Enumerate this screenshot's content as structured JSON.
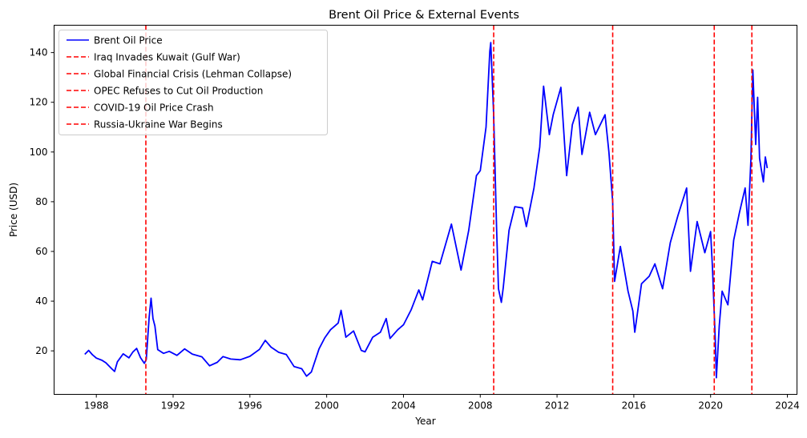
{
  "chart_data": {
    "type": "line",
    "title": "Brent Oil Price & External Events",
    "xlabel": "Year",
    "ylabel": "Price (USD)",
    "xlim": [
      1985.8,
      2024.5
    ],
    "ylim": [
      2.5,
      151
    ],
    "x_ticks": [
      1988,
      1992,
      1996,
      2000,
      2004,
      2008,
      2012,
      2016,
      2020,
      2024
    ],
    "y_ticks": [
      20,
      40,
      60,
      80,
      100,
      120,
      140
    ],
    "grid": false,
    "legend_position": "top-left",
    "series": [
      {
        "name": "Brent Oil Price",
        "color": "#0000ff",
        "points": [
          [
            1987.4,
            18.6
          ],
          [
            1987.6,
            20.2
          ],
          [
            1987.8,
            18.4
          ],
          [
            1988.0,
            17.1
          ],
          [
            1988.3,
            16.2
          ],
          [
            1988.5,
            15.2
          ],
          [
            1988.8,
            12.8
          ],
          [
            1988.95,
            11.7
          ],
          [
            1989.1,
            15.6
          ],
          [
            1989.4,
            18.8
          ],
          [
            1989.7,
            17.2
          ],
          [
            1989.9,
            19.5
          ],
          [
            1990.1,
            21.0
          ],
          [
            1990.3,
            17.3
          ],
          [
            1990.5,
            15.0
          ],
          [
            1990.6,
            16.5
          ],
          [
            1990.75,
            33.5
          ],
          [
            1990.85,
            41.2
          ],
          [
            1990.95,
            33.0
          ],
          [
            1991.05,
            30.0
          ],
          [
            1991.2,
            20.5
          ],
          [
            1991.5,
            19.0
          ],
          [
            1991.8,
            19.8
          ],
          [
            1992.2,
            18.2
          ],
          [
            1992.6,
            20.8
          ],
          [
            1993.0,
            18.7
          ],
          [
            1993.5,
            17.6
          ],
          [
            1993.9,
            14.0
          ],
          [
            1994.3,
            15.4
          ],
          [
            1994.6,
            17.7
          ],
          [
            1995.0,
            16.7
          ],
          [
            1995.5,
            16.4
          ],
          [
            1996.0,
            17.8
          ],
          [
            1996.5,
            20.6
          ],
          [
            1996.8,
            24.2
          ],
          [
            1997.1,
            21.5
          ],
          [
            1997.5,
            19.4
          ],
          [
            1997.9,
            18.5
          ],
          [
            1998.3,
            13.7
          ],
          [
            1998.7,
            12.8
          ],
          [
            1998.95,
            9.8
          ],
          [
            1999.2,
            11.5
          ],
          [
            1999.6,
            20.8
          ],
          [
            1999.9,
            25.2
          ],
          [
            2000.2,
            28.5
          ],
          [
            2000.6,
            31.2
          ],
          [
            2000.75,
            36.3
          ],
          [
            2001.0,
            25.5
          ],
          [
            2001.4,
            28.0
          ],
          [
            2001.8,
            20.2
          ],
          [
            2002.0,
            19.6
          ],
          [
            2002.4,
            25.5
          ],
          [
            2002.8,
            27.5
          ],
          [
            2003.1,
            33.0
          ],
          [
            2003.3,
            25.0
          ],
          [
            2003.7,
            28.5
          ],
          [
            2004.0,
            30.5
          ],
          [
            2004.4,
            36.5
          ],
          [
            2004.8,
            44.5
          ],
          [
            2005.0,
            40.5
          ],
          [
            2005.5,
            56.0
          ],
          [
            2005.9,
            55.0
          ],
          [
            2006.5,
            71.0
          ],
          [
            2007.0,
            52.5
          ],
          [
            2007.4,
            68.5
          ],
          [
            2007.8,
            90.5
          ],
          [
            2008.0,
            92.5
          ],
          [
            2008.3,
            110.0
          ],
          [
            2008.5,
            140.5
          ],
          [
            2008.55,
            144.0
          ],
          [
            2008.7,
            115.0
          ],
          [
            2008.85,
            70.0
          ],
          [
            2008.95,
            45.0
          ],
          [
            2009.1,
            39.5
          ],
          [
            2009.2,
            45.5
          ],
          [
            2009.5,
            68.5
          ],
          [
            2009.8,
            78.0
          ],
          [
            2010.2,
            77.5
          ],
          [
            2010.4,
            70.0
          ],
          [
            2010.8,
            85.5
          ],
          [
            2011.1,
            102.0
          ],
          [
            2011.3,
            126.5
          ],
          [
            2011.6,
            107.0
          ],
          [
            2011.8,
            115.0
          ],
          [
            2012.2,
            126.0
          ],
          [
            2012.5,
            90.5
          ],
          [
            2012.8,
            111.0
          ],
          [
            2013.1,
            118.0
          ],
          [
            2013.3,
            99.0
          ],
          [
            2013.7,
            116.0
          ],
          [
            2014.0,
            107.0
          ],
          [
            2014.5,
            115.0
          ],
          [
            2014.7,
            100.0
          ],
          [
            2014.9,
            80.0
          ],
          [
            2015.0,
            48.0
          ],
          [
            2015.3,
            62.0
          ],
          [
            2015.7,
            44.0
          ],
          [
            2015.95,
            36.0
          ],
          [
            2016.05,
            27.5
          ],
          [
            2016.4,
            47.0
          ],
          [
            2016.8,
            50.0
          ],
          [
            2017.1,
            55.0
          ],
          [
            2017.5,
            45.0
          ],
          [
            2017.9,
            63.5
          ],
          [
            2018.3,
            74.5
          ],
          [
            2018.75,
            85.5
          ],
          [
            2018.95,
            52.0
          ],
          [
            2019.3,
            72.0
          ],
          [
            2019.7,
            59.5
          ],
          [
            2020.0,
            68.0
          ],
          [
            2020.1,
            53.0
          ],
          [
            2020.25,
            23.0
          ],
          [
            2020.3,
            9.2
          ],
          [
            2020.45,
            30.0
          ],
          [
            2020.6,
            44.0
          ],
          [
            2020.9,
            38.5
          ],
          [
            2021.2,
            64.5
          ],
          [
            2021.5,
            75.5
          ],
          [
            2021.8,
            85.5
          ],
          [
            2021.95,
            70.5
          ],
          [
            2022.1,
            97.0
          ],
          [
            2022.2,
            133.0
          ],
          [
            2022.35,
            103.0
          ],
          [
            2022.45,
            122.0
          ],
          [
            2022.55,
            97.5
          ],
          [
            2022.65,
            92.5
          ],
          [
            2022.75,
            88.0
          ],
          [
            2022.85,
            98.0
          ],
          [
            2022.95,
            93.5
          ]
        ]
      }
    ],
    "events": [
      {
        "name": "Iraq Invades Kuwait (Gulf War)",
        "year": 1990.58,
        "color": "#ff0000"
      },
      {
        "name": "Global Financial Crisis (Lehman Collapse)",
        "year": 2008.7,
        "color": "#ff0000"
      },
      {
        "name": "OPEC Refuses to Cut Oil Production",
        "year": 2014.9,
        "color": "#ff0000"
      },
      {
        "name": "COVID-19 Oil Price Crash",
        "year": 2020.19,
        "color": "#ff0000"
      },
      {
        "name": "Russia-Ukraine War Begins",
        "year": 2022.15,
        "color": "#ff0000"
      }
    ]
  }
}
